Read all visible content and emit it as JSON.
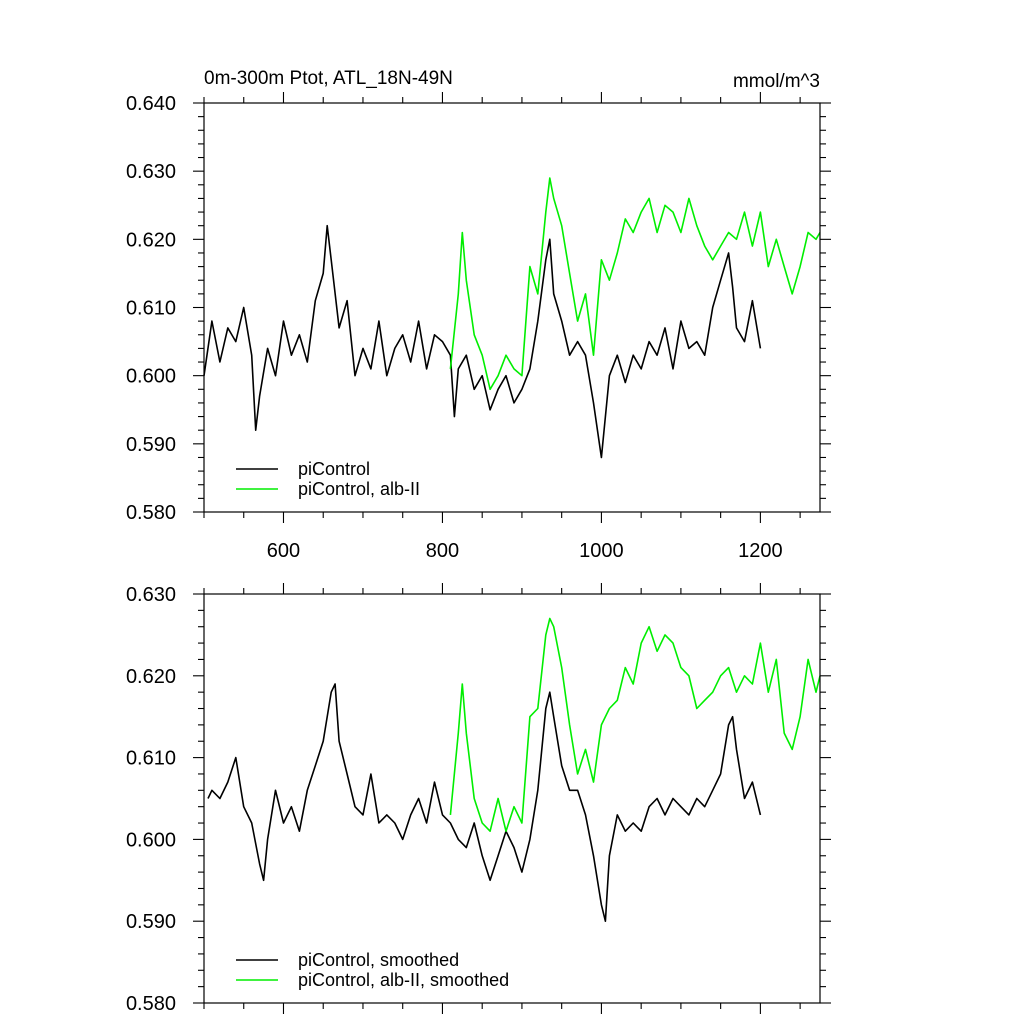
{
  "chart_data": [
    {
      "type": "line",
      "title": "0m-300m Ptot, ATL_18N-49N",
      "units": "mmol/m^3",
      "xlim": [
        500,
        1275
      ],
      "ylim": [
        0.58,
        0.64
      ],
      "xticks": [
        600,
        800,
        1000,
        1200
      ],
      "xtick_labels": [
        "600",
        "800",
        "1000",
        "1200"
      ],
      "show_xtick_labels": true,
      "yticks": [
        0.58,
        0.59,
        0.6,
        0.61,
        0.62,
        0.63,
        0.64
      ],
      "ytick_labels": [
        "0.580",
        "0.590",
        "0.600",
        "0.610",
        "0.620",
        "0.630",
        "0.640"
      ],
      "legend_position": "bottom-left",
      "series": [
        {
          "name": "piControl",
          "color": "#000000",
          "x": [
            500,
            510,
            520,
            530,
            540,
            550,
            560,
            565,
            570,
            580,
            590,
            600,
            610,
            620,
            630,
            640,
            650,
            655,
            660,
            670,
            680,
            690,
            700,
            710,
            720,
            730,
            740,
            750,
            760,
            770,
            780,
            790,
            800,
            810,
            815,
            820,
            830,
            840,
            850,
            860,
            870,
            880,
            890,
            900,
            910,
            920,
            930,
            935,
            940,
            950,
            960,
            970,
            980,
            990,
            1000,
            1010,
            1020,
            1030,
            1040,
            1050,
            1060,
            1070,
            1080,
            1090,
            1100,
            1110,
            1120,
            1130,
            1140,
            1150,
            1160,
            1165,
            1170,
            1180,
            1190,
            1200
          ],
          "y": [
            0.6,
            0.608,
            0.602,
            0.607,
            0.605,
            0.61,
            0.603,
            0.592,
            0.597,
            0.604,
            0.6,
            0.608,
            0.603,
            0.606,
            0.602,
            0.611,
            0.615,
            0.622,
            0.617,
            0.607,
            0.611,
            0.6,
            0.604,
            0.601,
            0.608,
            0.6,
            0.604,
            0.606,
            0.602,
            0.608,
            0.601,
            0.606,
            0.605,
            0.603,
            0.594,
            0.601,
            0.603,
            0.598,
            0.6,
            0.595,
            0.598,
            0.6,
            0.596,
            0.598,
            0.601,
            0.608,
            0.617,
            0.62,
            0.612,
            0.608,
            0.603,
            0.605,
            0.603,
            0.596,
            0.588,
            0.6,
            0.603,
            0.599,
            0.603,
            0.601,
            0.605,
            0.603,
            0.607,
            0.601,
            0.608,
            0.604,
            0.605,
            0.603,
            0.61,
            0.614,
            0.618,
            0.613,
            0.607,
            0.605,
            0.611,
            0.604
          ]
        },
        {
          "name": "piControl, alb-II",
          "color": "#00ee00",
          "x": [
            810,
            820,
            825,
            830,
            840,
            850,
            860,
            870,
            880,
            890,
            900,
            910,
            920,
            930,
            935,
            940,
            950,
            960,
            970,
            980,
            990,
            1000,
            1010,
            1020,
            1030,
            1040,
            1050,
            1060,
            1070,
            1080,
            1090,
            1100,
            1110,
            1120,
            1130,
            1140,
            1150,
            1160,
            1170,
            1180,
            1190,
            1200,
            1210,
            1220,
            1230,
            1240,
            1250,
            1260,
            1270,
            1275
          ],
          "y": [
            0.601,
            0.612,
            0.621,
            0.614,
            0.606,
            0.603,
            0.598,
            0.6,
            0.603,
            0.601,
            0.6,
            0.616,
            0.612,
            0.624,
            0.629,
            0.626,
            0.622,
            0.615,
            0.608,
            0.612,
            0.603,
            0.617,
            0.614,
            0.618,
            0.623,
            0.621,
            0.624,
            0.626,
            0.621,
            0.625,
            0.624,
            0.621,
            0.626,
            0.622,
            0.619,
            0.617,
            0.619,
            0.621,
            0.62,
            0.624,
            0.619,
            0.624,
            0.616,
            0.62,
            0.616,
            0.612,
            0.616,
            0.621,
            0.62,
            0.621
          ]
        }
      ]
    },
    {
      "type": "line",
      "title": "",
      "units": "",
      "xlim": [
        500,
        1275
      ],
      "ylim": [
        0.58,
        0.63
      ],
      "xticks": [
        600,
        800,
        1000,
        1200
      ],
      "xtick_labels": [],
      "show_xtick_labels": false,
      "yticks": [
        0.58,
        0.59,
        0.6,
        0.61,
        0.62,
        0.63
      ],
      "ytick_labels": [
        "0.580",
        "0.590",
        "0.600",
        "0.610",
        "0.620",
        "0.630"
      ],
      "legend_position": "bottom-left",
      "series": [
        {
          "name": "piControl, smoothed",
          "color": "#000000",
          "x": [
            505,
            510,
            520,
            530,
            540,
            550,
            560,
            570,
            575,
            580,
            590,
            600,
            610,
            620,
            630,
            640,
            650,
            660,
            665,
            670,
            680,
            690,
            700,
            710,
            720,
            730,
            740,
            750,
            760,
            770,
            780,
            790,
            800,
            810,
            820,
            830,
            840,
            850,
            860,
            870,
            880,
            890,
            900,
            910,
            920,
            930,
            935,
            940,
            950,
            960,
            970,
            980,
            990,
            1000,
            1005,
            1010,
            1020,
            1030,
            1040,
            1050,
            1060,
            1070,
            1080,
            1090,
            1100,
            1110,
            1120,
            1130,
            1140,
            1150,
            1160,
            1165,
            1170,
            1180,
            1190,
            1200
          ],
          "y": [
            0.605,
            0.606,
            0.605,
            0.607,
            0.61,
            0.604,
            0.602,
            0.597,
            0.595,
            0.6,
            0.606,
            0.602,
            0.604,
            0.601,
            0.606,
            0.609,
            0.612,
            0.618,
            0.619,
            0.612,
            0.608,
            0.604,
            0.603,
            0.608,
            0.602,
            0.603,
            0.602,
            0.6,
            0.603,
            0.605,
            0.602,
            0.607,
            0.603,
            0.602,
            0.6,
            0.599,
            0.602,
            0.598,
            0.595,
            0.598,
            0.601,
            0.599,
            0.596,
            0.6,
            0.606,
            0.616,
            0.618,
            0.615,
            0.609,
            0.606,
            0.606,
            0.603,
            0.598,
            0.592,
            0.59,
            0.598,
            0.603,
            0.601,
            0.602,
            0.601,
            0.604,
            0.605,
            0.603,
            0.605,
            0.604,
            0.603,
            0.605,
            0.604,
            0.606,
            0.608,
            0.614,
            0.615,
            0.611,
            0.605,
            0.607,
            0.603
          ]
        },
        {
          "name": "piControl, alb-II, smoothed",
          "color": "#00ee00",
          "x": [
            810,
            820,
            825,
            830,
            840,
            850,
            860,
            870,
            880,
            890,
            900,
            910,
            920,
            930,
            935,
            940,
            950,
            960,
            970,
            980,
            990,
            1000,
            1010,
            1020,
            1030,
            1040,
            1050,
            1060,
            1070,
            1080,
            1090,
            1100,
            1110,
            1120,
            1130,
            1140,
            1150,
            1160,
            1170,
            1180,
            1190,
            1200,
            1210,
            1220,
            1230,
            1240,
            1250,
            1260,
            1270,
            1275
          ],
          "y": [
            0.603,
            0.613,
            0.619,
            0.613,
            0.605,
            0.602,
            0.601,
            0.605,
            0.601,
            0.604,
            0.602,
            0.615,
            0.616,
            0.625,
            0.627,
            0.626,
            0.621,
            0.614,
            0.608,
            0.611,
            0.607,
            0.614,
            0.616,
            0.617,
            0.621,
            0.619,
            0.624,
            0.626,
            0.623,
            0.625,
            0.624,
            0.621,
            0.62,
            0.616,
            0.617,
            0.618,
            0.62,
            0.621,
            0.618,
            0.62,
            0.619,
            0.624,
            0.618,
            0.622,
            0.613,
            0.611,
            0.615,
            0.622,
            0.618,
            0.62
          ]
        }
      ]
    }
  ]
}
